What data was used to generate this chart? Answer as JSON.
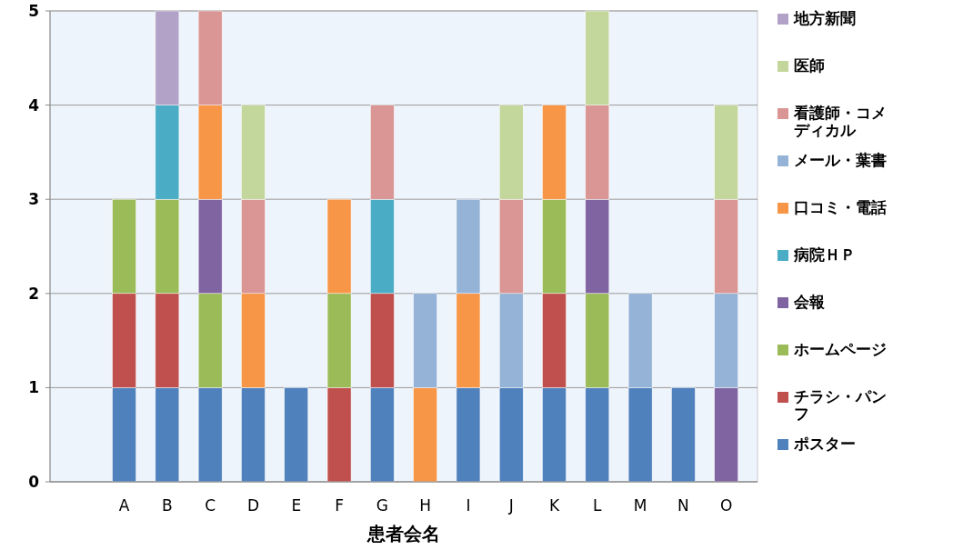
{
  "chart_data": {
    "type": "bar",
    "stacked": true,
    "xlabel": "患者会名",
    "categories": [
      null,
      "A",
      "B",
      "C",
      "D",
      "E",
      "F",
      "G",
      "H",
      "I",
      "J",
      "K",
      "L",
      "M",
      "N",
      "O"
    ],
    "ylim": [
      0,
      5
    ],
    "yticks": [
      0,
      1,
      2,
      3,
      4,
      5
    ],
    "grid": "y",
    "legend": "right",
    "series": [
      {
        "name": "ポスター",
        "color": "#4f81bd",
        "values": [
          0,
          1,
          1,
          1,
          1,
          1,
          0,
          1,
          0,
          1,
          1,
          1,
          1,
          1,
          1,
          0
        ]
      },
      {
        "name": "チラシ・パンフ",
        "color": "#c0504d",
        "values": [
          0,
          1,
          1,
          0,
          0,
          0,
          1,
          1,
          0,
          0,
          0,
          1,
          0,
          0,
          0,
          0
        ]
      },
      {
        "name": "ホームページ",
        "color": "#9bbb59",
        "values": [
          0,
          1,
          1,
          1,
          0,
          0,
          1,
          0,
          0,
          0,
          0,
          1,
          1,
          0,
          0,
          0
        ]
      },
      {
        "name": "会報",
        "color": "#8064a2",
        "values": [
          0,
          0,
          0,
          1,
          0,
          0,
          0,
          0,
          0,
          0,
          0,
          0,
          1,
          0,
          0,
          1
        ]
      },
      {
        "name": "病院ＨＰ",
        "color": "#4bacc6",
        "values": [
          0,
          0,
          1,
          0,
          0,
          0,
          0,
          1,
          0,
          0,
          0,
          0,
          0,
          0,
          0,
          0
        ]
      },
      {
        "name": "口コミ・電話",
        "color": "#f79646",
        "values": [
          0,
          0,
          0,
          1,
          1,
          0,
          1,
          0,
          1,
          1,
          0,
          1,
          0,
          0,
          0,
          0
        ]
      },
      {
        "name": "メール・葉書",
        "color": "#95b3d7",
        "values": [
          0,
          0,
          0,
          0,
          0,
          0,
          0,
          0,
          1,
          1,
          1,
          0,
          0,
          1,
          0,
          1
        ]
      },
      {
        "name": "看護師・コメディカル",
        "color": "#d99694",
        "values": [
          0,
          0,
          0,
          1,
          1,
          0,
          0,
          1,
          0,
          0,
          1,
          0,
          1,
          0,
          0,
          1
        ]
      },
      {
        "name": "医師",
        "color": "#c3d69b",
        "values": [
          0,
          0,
          0,
          0,
          1,
          0,
          0,
          0,
          0,
          0,
          1,
          0,
          1,
          0,
          0,
          1
        ]
      },
      {
        "name": "地方新聞",
        "color": "#b3a2c7",
        "values": [
          0,
          0,
          1,
          0,
          0,
          0,
          0,
          0,
          0,
          0,
          0,
          0,
          0,
          0,
          0,
          0
        ]
      }
    ]
  }
}
